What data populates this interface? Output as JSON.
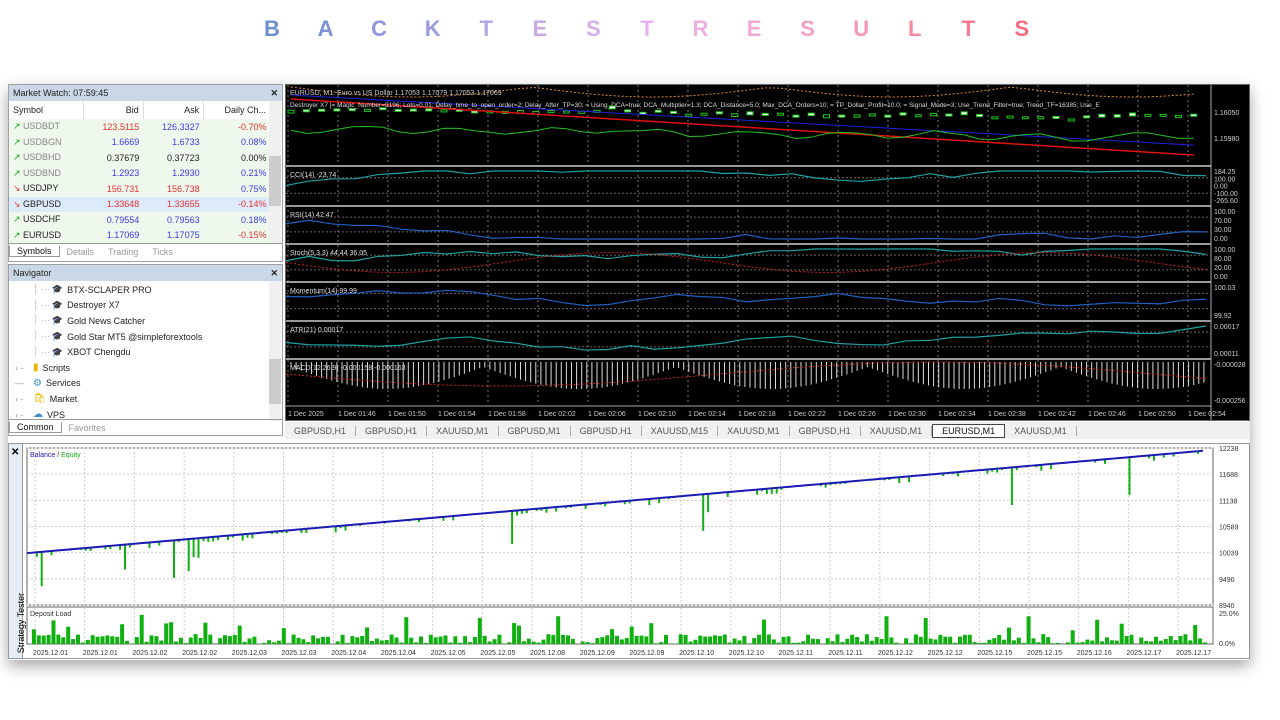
{
  "title_letters": [
    "B",
    "A",
    "C",
    "K",
    "T",
    "E",
    "S",
    "T",
    "R",
    "E",
    "S",
    "U",
    "L",
    "T",
    "S"
  ],
  "title_colors": [
    "#6f8fd0",
    "#7b90d6",
    "#8d96dc",
    "#9b9ce0",
    "#b5a6e4",
    "#c8aae6",
    "#d7aeec",
    "#e5b4f0",
    "#eeaee0",
    "#f2a8d2",
    "#f4a0c4",
    "#f696b4",
    "#f789a2",
    "#f87a90",
    "#f86c7e"
  ],
  "market_watch": {
    "title": "Market Watch: 07:59:45",
    "columns": [
      "Symbol",
      "Bid",
      "Ask",
      "Daily Ch..."
    ],
    "rows": [
      {
        "dir": "up",
        "symbol": "USDBDT",
        "bid": "123.5115",
        "ask": "126.3327",
        "change": "-0.70%",
        "bc": "red",
        "ac": "blue",
        "cc": "red"
      },
      {
        "dir": "up",
        "symbol": "USDBGN",
        "bid": "1.6669",
        "ask": "1.6733",
        "change": "0.08%",
        "bc": "blue",
        "ac": "blue",
        "cc": "blue"
      },
      {
        "dir": "up",
        "symbol": "USDBHD",
        "bid": "0.37679",
        "ask": "0.37723",
        "change": "0.00%",
        "bc": "blk",
        "ac": "blk",
        "cc": "blk"
      },
      {
        "dir": "up",
        "symbol": "USDBND",
        "bid": "1.2923",
        "ask": "1.2930",
        "change": "0.21%",
        "bc": "blue",
        "ac": "blue",
        "cc": "blue"
      },
      {
        "dir": "dn",
        "symbol": "USDJPY",
        "bid": "156.731",
        "ask": "156.738",
        "change": "0.75%",
        "bc": "red",
        "ac": "red",
        "cc": "blue"
      },
      {
        "dir": "dn",
        "symbol": "GBPUSD",
        "bid": "1.33648",
        "ask": "1.33655",
        "change": "-0.14%",
        "bc": "red",
        "ac": "red",
        "cc": "red"
      },
      {
        "dir": "up",
        "symbol": "USDCHF",
        "bid": "0.79554",
        "ask": "0.79563",
        "change": "0.18%",
        "bc": "blue",
        "ac": "blue",
        "cc": "blue"
      },
      {
        "dir": "up",
        "symbol": "EURUSD",
        "bid": "1.17069",
        "ask": "1.17075",
        "change": "-0.15%",
        "bc": "blue",
        "ac": "blue",
        "cc": "red"
      }
    ],
    "tabs": [
      "Symbols",
      "Details",
      "Trading",
      "Ticks"
    ]
  },
  "navigator": {
    "title": "Navigator",
    "experts": [
      "BTX-SCLAPER PRO",
      "Destroyer X7",
      "Gold News Catcher",
      "Gold Star MT5 @simpleforextools",
      "XBOT Chengdu"
    ],
    "folders": [
      "Scripts",
      "Services",
      "Market",
      "VPS"
    ],
    "tabs": [
      "Common",
      "Favorites"
    ]
  },
  "chart": {
    "header": "EURUSD, M1:  Euro vs US Dollar  1.17053  1.17079 1.17053 1.17069",
    "ea_params": "Destroyer X7 [= Magic_Number=9196; Lots=0.01; Delay_time_to_open_order=2; Delay_After_TP=30; = Using_DCA=true; DCA_Multiplier=1.3; DCA_Distance=5.0; Max_DCA_Orders=10; = TP_Dollar_Profit=10.0; = Signal_Mode=3; Use_Trend_Filter=true; Trend_TF=16385; Use_E",
    "price_ticks": [
      "1.16050",
      "1.15980"
    ],
    "indicators": [
      {
        "label": "CCI(14) -23.74",
        "ticks": [
          "184.25",
          "100.00",
          "0.00",
          "-100.00",
          "-265.60"
        ]
      },
      {
        "label": "RSI(14) 42.47",
        "ticks": [
          "100.00",
          "70.00",
          "30.00",
          "0.00"
        ]
      },
      {
        "label": "Stoch(5,3,3) 44.44 36.05",
        "ticks": [
          "100.00",
          "80.00",
          "20.00",
          "0.00"
        ]
      },
      {
        "label": "Momentum(14) 99.99",
        "ticks": [
          "100.03",
          "99.92"
        ]
      },
      {
        "label": "ATR(21) 0.00017",
        "ticks": [
          "0.00017",
          "0.00011"
        ]
      },
      {
        "label": "MACD(12,26,9) -0.000158 -0.000163",
        "ticks": [
          "-0.000028",
          "-0.000256"
        ]
      }
    ],
    "time_labels": [
      "1 Dec 2025",
      "1 Dec 01:46",
      "1 Dec 01:50",
      "1 Dec 01:54",
      "1 Dec 01:58",
      "1 Dec 02:02",
      "1 Dec 02:06",
      "1 Dec 02:10",
      "1 Dec 02:14",
      "1 Dec 02:18",
      "1 Dec 02:22",
      "1 Dec 02:26",
      "1 Dec 02:30",
      "1 Dec 02:34",
      "1 Dec 02:38",
      "1 Dec 02:42",
      "1 Dec 02:46",
      "1 Dec 02:50",
      "1 Dec 02:54"
    ],
    "tabs": [
      "GBPUSD,H1",
      "GBPUSD,H1",
      "XAUUSD,M1",
      "GBPUSD,M1",
      "GBPUSD,H1",
      "XAUUSD,M15",
      "XAUUSD,M1",
      "GBPUSD,H1",
      "XAUUSD,M1",
      "EURUSD,M1",
      "XAUUSD,M1"
    ],
    "active_tab": 9
  },
  "tester": {
    "side_label": "Strategy Tester",
    "legend_balance": "Balance",
    "legend_sep": " / ",
    "legend_equity": "Equity",
    "balance_color": "#1a1ab4",
    "equity_color": "#10b010",
    "y_ticks": [
      "12238",
      "11688",
      "11138",
      "10589",
      "10039",
      "9490",
      "8940"
    ],
    "balance_start": 10030,
    "balance_end": 12180,
    "load_title": "Deposit Load",
    "load_ticks": [
      "25.0%",
      "0.0%"
    ],
    "dates": [
      "2025.12.01",
      "2025.12.01",
      "2025.12.02",
      "2025.12.02",
      "2025.12.03",
      "2025.12.03",
      "2025.12.04",
      "2025.12.04",
      "2025.12.05",
      "2025.12.05",
      "2025.12.08",
      "2025.12.09",
      "2025.12.09",
      "2025.12.10",
      "2025.12.10",
      "2025.12.11",
      "2025.12.11",
      "2025.12.12",
      "2025.12.12",
      "2025.12.15",
      "2025.12.15",
      "2025.12.16",
      "2025.12.17",
      "2025.12.17"
    ]
  }
}
